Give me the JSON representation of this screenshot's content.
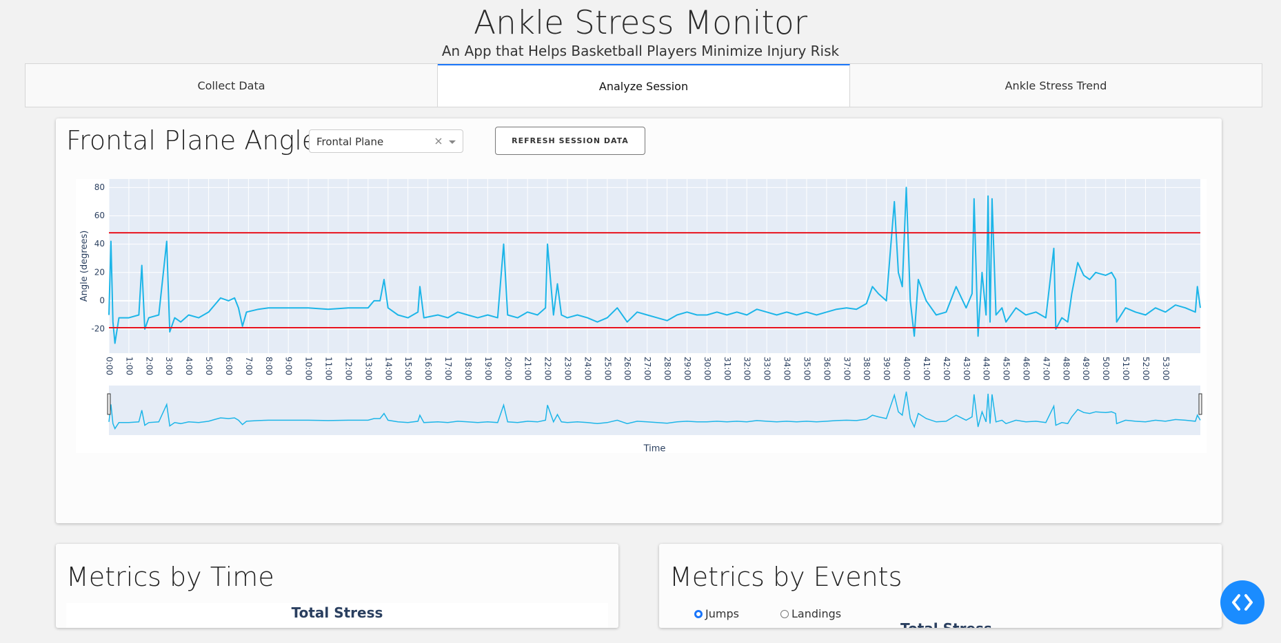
{
  "header": {
    "title": "Ankle Stress Monitor",
    "subtitle": "An App that Helps Basketball Players Minimize Injury Risk"
  },
  "tabs": [
    "Collect Data",
    "Analyze Session",
    "Ankle Stress Trend"
  ],
  "active_tab": 1,
  "frontal_panel": {
    "title": "Frontal Plane Angle",
    "dropdown": "Frontal Plane",
    "button": "REFRESH SESSION DATA"
  },
  "chart_data": {
    "type": "line",
    "x_label": "Time",
    "y_label": "Angle (degrees)",
    "color": "#1cb5e8",
    "x": [
      0,
      0.1,
      0.2,
      0.3,
      0.5,
      1,
      1.5,
      1.65,
      1.8,
      2,
      2.5,
      2.9,
      3.05,
      3.3,
      3.6,
      4,
      4.5,
      5,
      5.3,
      5.6,
      6,
      6.3,
      6.5,
      6.7,
      6.9,
      7.5,
      8,
      9,
      10,
      11,
      12,
      13,
      13.3,
      13.6,
      13.8,
      14,
      14.5,
      15,
      15.5,
      15.6,
      15.8,
      16.5,
      17,
      17.5,
      18,
      18.5,
      19,
      19.5,
      19.8,
      20,
      20.5,
      21,
      21.5,
      21.9,
      22,
      22.3,
      22.5,
      22.7,
      23,
      23.5,
      24,
      24.5,
      25,
      25.5,
      26,
      26.5,
      27,
      27.5,
      28,
      28.5,
      29,
      29.5,
      30,
      30.5,
      31,
      31.5,
      32,
      32.5,
      33,
      33.5,
      34,
      34.5,
      35,
      35.5,
      36,
      36.5,
      37,
      37.5,
      38,
      38.3,
      38.6,
      39,
      39.4,
      39.6,
      39.8,
      40,
      40.2,
      40.4,
      40.6,
      41,
      41.5,
      42,
      42.5,
      43,
      43.3,
      43.4,
      43.6,
      43.8,
      44,
      44.1,
      44.2,
      44.3,
      44.5,
      44.8,
      45,
      45.5,
      46,
      46.5,
      47,
      47.4,
      47.5,
      47.8,
      48.1,
      48.3,
      48.6,
      48.9,
      49.2,
      49.5,
      50,
      50.3,
      50.5,
      50.55,
      51,
      51.5,
      52,
      52.5,
      53,
      53.5,
      54,
      54.5,
      54.6,
      54.75
    ],
    "values": [
      -10,
      42,
      -15,
      -30,
      -12,
      -12,
      -10,
      25,
      -20,
      -12,
      -10,
      42,
      -22,
      -12,
      -15,
      -10,
      -12,
      -8,
      -3,
      2,
      0,
      2,
      -5,
      -18,
      -8,
      -6,
      -5,
      -5,
      -5,
      -6,
      -5,
      -5,
      0,
      0,
      15,
      -5,
      -10,
      -12,
      -8,
      10,
      -12,
      -10,
      -12,
      -8,
      -10,
      -12,
      -10,
      -12,
      40,
      -10,
      -12,
      -8,
      -10,
      -5,
      40,
      -10,
      12,
      -10,
      -12,
      -10,
      -12,
      -15,
      -12,
      -5,
      -15,
      -8,
      -10,
      -12,
      -14,
      -10,
      -8,
      -10,
      -10,
      -8,
      -10,
      -8,
      -10,
      -6,
      -8,
      -10,
      -8,
      -10,
      -8,
      -10,
      -8,
      -6,
      -5,
      -6,
      -2,
      10,
      5,
      0,
      70,
      20,
      10,
      80,
      0,
      -25,
      15,
      0,
      -10,
      -8,
      10,
      -5,
      5,
      72,
      -25,
      20,
      -10,
      74,
      -15,
      72,
      -10,
      -5,
      -15,
      -5,
      -10,
      -8,
      -12,
      37,
      -20,
      -12,
      -15,
      5,
      27,
      18,
      15,
      20,
      18,
      20,
      15,
      -15,
      -5,
      -8,
      -10,
      -5,
      -8,
      -3,
      -5,
      -8,
      10,
      -5
    ],
    "hlines": [
      48,
      -19
    ],
    "hline_color": "#e8121d",
    "xlim": [
      0,
      54.75
    ],
    "ylim": [
      -37,
      86
    ],
    "yticks": [
      -20,
      0,
      20,
      40,
      60,
      80
    ],
    "xticks": [
      {
        "value": 0,
        "label": "0:00"
      },
      {
        "value": 1,
        "label": "1:00"
      },
      {
        "value": 2,
        "label": "2:00"
      },
      {
        "value": 3,
        "label": "3:00"
      },
      {
        "value": 4,
        "label": "4:00"
      },
      {
        "value": 5,
        "label": "5:00"
      },
      {
        "value": 6,
        "label": "6:00"
      },
      {
        "value": 7,
        "label": "7:00"
      },
      {
        "value": 8,
        "label": "8:00"
      },
      {
        "value": 9,
        "label": "9:00"
      },
      {
        "value": 10,
        "label": "10:00"
      },
      {
        "value": 11,
        "label": "11:00"
      },
      {
        "value": 12,
        "label": "12:00"
      },
      {
        "value": 13,
        "label": "13:00"
      },
      {
        "value": 14,
        "label": "14:00"
      },
      {
        "value": 15,
        "label": "15:00"
      },
      {
        "value": 16,
        "label": "16:00"
      },
      {
        "value": 17,
        "label": "17:00"
      },
      {
        "value": 18,
        "label": "18:00"
      },
      {
        "value": 19,
        "label": "19:00"
      },
      {
        "value": 20,
        "label": "20:00"
      },
      {
        "value": 21,
        "label": "21:00"
      },
      {
        "value": 22,
        "label": "22:00"
      },
      {
        "value": 23,
        "label": "23:00"
      },
      {
        "value": 24,
        "label": "24:00"
      },
      {
        "value": 25,
        "label": "25:00"
      },
      {
        "value": 26,
        "label": "26:00"
      },
      {
        "value": 27,
        "label": "27:00"
      },
      {
        "value": 28,
        "label": "28:00"
      },
      {
        "value": 29,
        "label": "29:00"
      },
      {
        "value": 30,
        "label": "30:00"
      },
      {
        "value": 31,
        "label": "31:00"
      },
      {
        "value": 32,
        "label": "32:00"
      },
      {
        "value": 33,
        "label": "33:00"
      },
      {
        "value": 34,
        "label": "34:00"
      },
      {
        "value": 35,
        "label": "35:00"
      },
      {
        "value": 36,
        "label": "36:00"
      },
      {
        "value": 37,
        "label": "37:00"
      },
      {
        "value": 38,
        "label": "38:00"
      },
      {
        "value": 39,
        "label": "39:00"
      },
      {
        "value": 40,
        "label": "40:00"
      },
      {
        "value": 41,
        "label": "41:00"
      },
      {
        "value": 42,
        "label": "42:00"
      },
      {
        "value": 43,
        "label": "43:00"
      },
      {
        "value": 44,
        "label": "44:00"
      },
      {
        "value": 45,
        "label": "45:00"
      },
      {
        "value": 46,
        "label": "46:00"
      },
      {
        "value": 47,
        "label": "47:00"
      },
      {
        "value": 48,
        "label": "48:00"
      },
      {
        "value": 49,
        "label": "49:00"
      },
      {
        "value": 50,
        "label": "50:00"
      },
      {
        "value": 51,
        "label": "51:00"
      },
      {
        "value": 52,
        "label": "52:00"
      },
      {
        "value": 53,
        "label": "53:00"
      }
    ],
    "grid": true,
    "rangeslider": true
  },
  "metrics_time": {
    "title": "Metrics by Time",
    "chart_title": "Total Stress"
  },
  "metrics_events": {
    "title": "Metrics by Events",
    "options": [
      "Jumps",
      "Landings"
    ],
    "selected": 0,
    "chart_title": "Total Stress"
  }
}
